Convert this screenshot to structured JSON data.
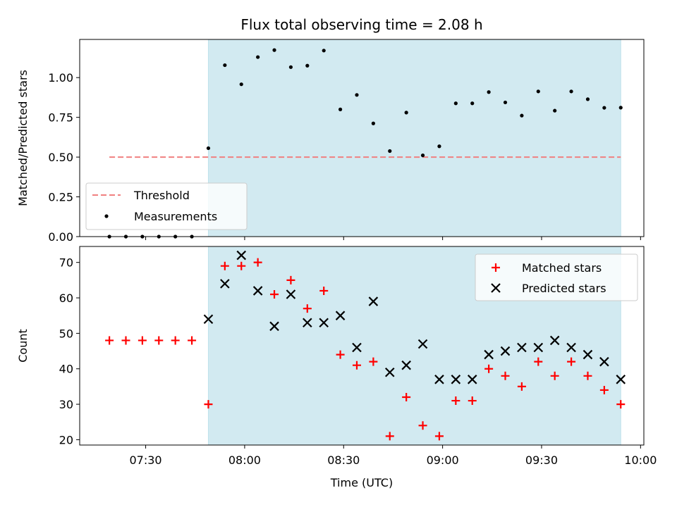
{
  "chart_data": [
    {
      "type": "scatter",
      "title": "Flux total observing time = 2.08 h",
      "ylabel": "Matched/Predicted stars",
      "ylim": [
        0,
        1.24
      ],
      "yticks": [
        "0.00",
        "0.25",
        "0.50",
        "0.75",
        "1.00"
      ],
      "xlim": [
        "07:10",
        "10:01"
      ],
      "shaded_span": [
        "07:49",
        "09:54"
      ],
      "shade_color": "#add8e6",
      "legend_position": "lower-left",
      "series": [
        {
          "name": "Threshold",
          "style": "dashed-line",
          "color": "#f08080",
          "x": [
            "07:19",
            "09:54"
          ],
          "y": [
            0.5,
            0.5
          ]
        },
        {
          "name": "Measurements",
          "style": "dot",
          "color": "#000000",
          "x": [
            "07:19",
            "07:24",
            "07:29",
            "07:34",
            "07:39",
            "07:44",
            "07:49",
            "07:54",
            "07:59",
            "08:04",
            "08:09",
            "08:14",
            "08:19",
            "08:24",
            "08:29",
            "08:34",
            "08:39",
            "08:44",
            "08:49",
            "08:54",
            "08:59",
            "09:04",
            "09:09",
            "09:14",
            "09:19",
            "09:24",
            "09:29",
            "09:34",
            "09:39",
            "09:44",
            "09:49",
            "09:54"
          ],
          "y": [
            0,
            0,
            0,
            0,
            0,
            0,
            0.556,
            1.078,
            0.958,
            1.129,
            1.173,
            1.066,
            1.075,
            1.17,
            0.8,
            0.891,
            0.712,
            0.538,
            0.78,
            0.511,
            0.568,
            0.838,
            0.838,
            0.909,
            0.844,
            0.761,
            0.913,
            0.792,
            0.913,
            0.864,
            0.81,
            0.811
          ]
        }
      ]
    },
    {
      "type": "scatter",
      "xlabel": "Time (UTC)",
      "ylabel": "Count",
      "ylim": [
        18.5,
        74.5
      ],
      "yticks": [
        "20",
        "30",
        "40",
        "50",
        "60",
        "70"
      ],
      "xlim": [
        "07:10",
        "10:01"
      ],
      "xticks": [
        "07:30",
        "08:00",
        "08:30",
        "09:00",
        "09:30",
        "10:00"
      ],
      "shaded_span": [
        "07:49",
        "09:54"
      ],
      "shade_color": "#add8e6",
      "legend_position": "upper-right",
      "series": [
        {
          "name": "Matched stars",
          "marker": "+",
          "color": "#ff0000",
          "x": [
            "07:19",
            "07:24",
            "07:29",
            "07:34",
            "07:39",
            "07:44",
            "07:49",
            "07:54",
            "07:59",
            "08:04",
            "08:09",
            "08:14",
            "08:19",
            "08:24",
            "08:29",
            "08:34",
            "08:39",
            "08:44",
            "08:49",
            "08:54",
            "08:59",
            "09:04",
            "09:09",
            "09:14",
            "09:19",
            "09:24",
            "09:29",
            "09:34",
            "09:39",
            "09:44",
            "09:49",
            "09:54"
          ],
          "y": [
            48,
            48,
            48,
            48,
            48,
            48,
            30,
            69,
            69,
            70,
            61,
            65,
            57,
            62,
            44,
            41,
            42,
            21,
            32,
            24,
            21,
            31,
            31,
            40,
            38,
            35,
            42,
            38,
            42,
            38,
            34,
            30
          ]
        },
        {
          "name": "Predicted stars",
          "marker": "x",
          "color": "#000000",
          "x": [
            "07:49",
            "07:54",
            "07:59",
            "08:04",
            "08:09",
            "08:14",
            "08:19",
            "08:24",
            "08:29",
            "08:34",
            "08:39",
            "08:44",
            "08:49",
            "08:54",
            "08:59",
            "09:04",
            "09:09",
            "09:14",
            "09:19",
            "09:24",
            "09:29",
            "09:34",
            "09:39",
            "09:44",
            "09:49",
            "09:54"
          ],
          "y": [
            54,
            64,
            72,
            62,
            52,
            61,
            53,
            53,
            55,
            46,
            59,
            39,
            41,
            47,
            37,
            37,
            37,
            44,
            45,
            46,
            46,
            48,
            46,
            44,
            42,
            37
          ]
        }
      ]
    }
  ]
}
